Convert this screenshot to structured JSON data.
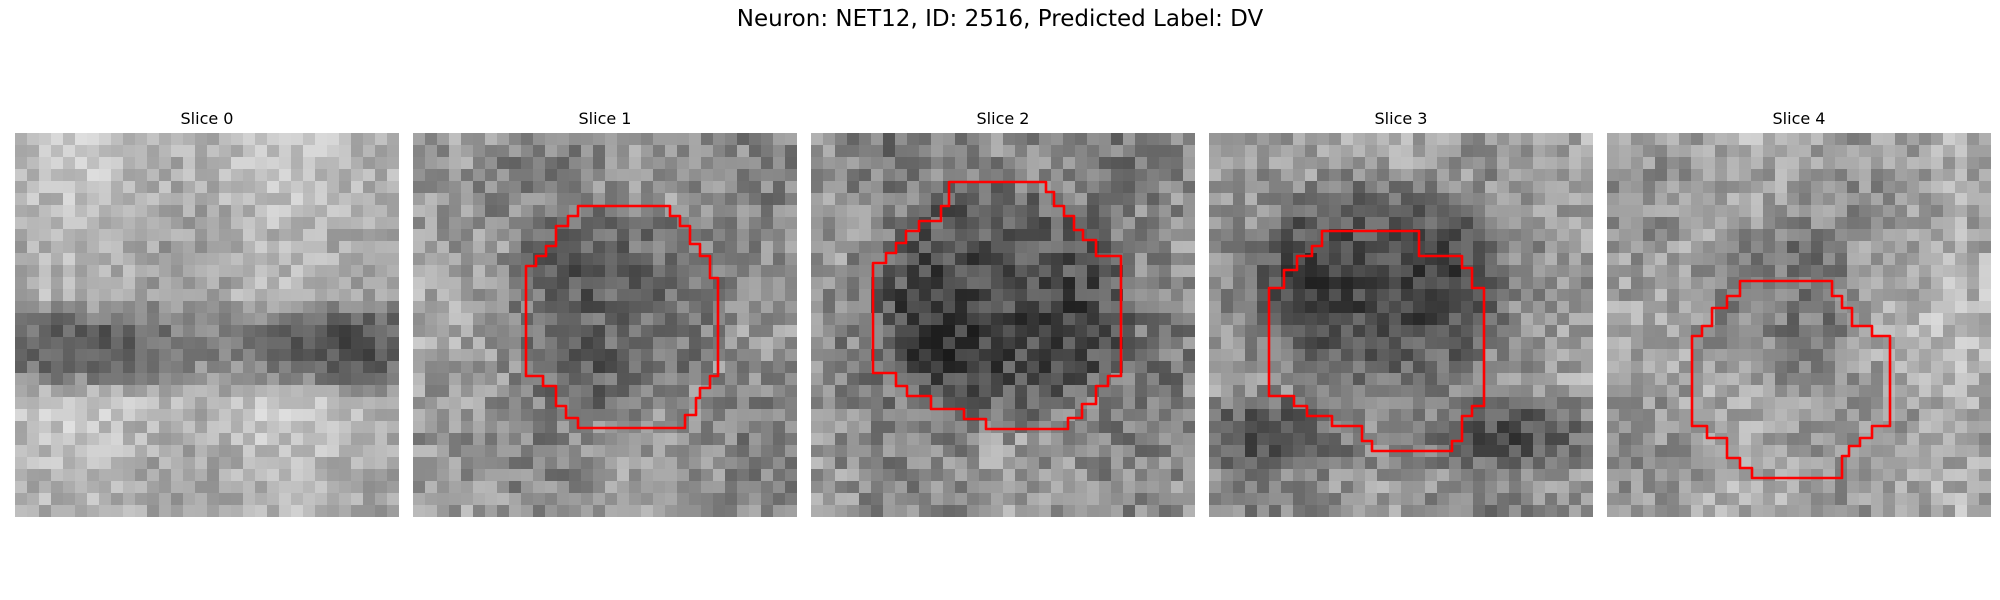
{
  "figure": {
    "title": "Neuron: NET12, ID: 2516, Predicted Label: DV"
  },
  "panels": [
    {
      "title": "Slice 0",
      "has_contour": false
    },
    {
      "title": "Slice 1",
      "has_contour": true
    },
    {
      "title": "Slice 2",
      "has_contour": true
    },
    {
      "title": "Slice 3",
      "has_contour": true
    },
    {
      "title": "Slice 4",
      "has_contour": true
    }
  ],
  "colors": {
    "contour": "#ff0000",
    "background": "#ffffff"
  },
  "colormap": "gray"
}
